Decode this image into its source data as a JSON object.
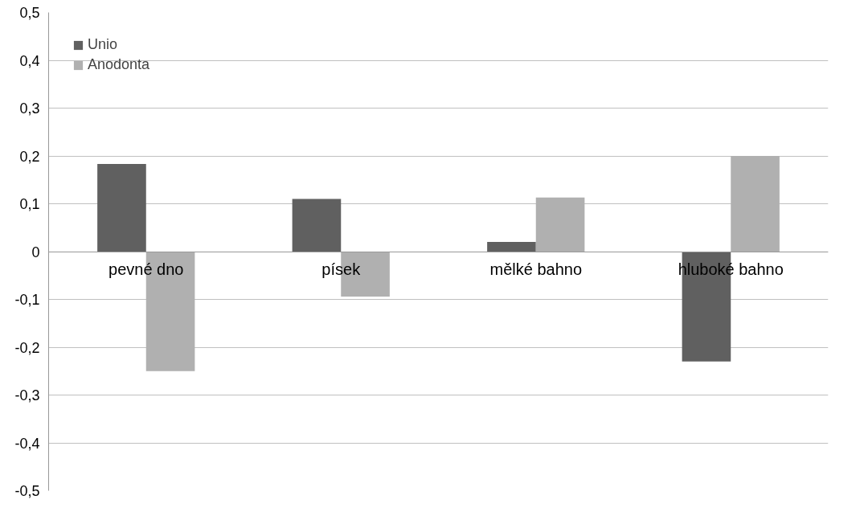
{
  "chart_data": {
    "type": "bar",
    "categories": [
      "pevné dno",
      "písek",
      "mělké bahno",
      "hluboké bahno"
    ],
    "series": [
      {
        "name": "Unio",
        "color": "#606060",
        "values": [
          0.183,
          0.11,
          0.02,
          -0.23
        ]
      },
      {
        "name": "Anodonta",
        "color": "#b0b0b0",
        "values": [
          -0.25,
          -0.094,
          0.113,
          0.2
        ]
      }
    ],
    "ylim": [
      -0.5,
      0.5
    ],
    "yticks": [
      {
        "value": -0.5,
        "label": "-0,5"
      },
      {
        "value": -0.4,
        "label": "-0,4"
      },
      {
        "value": -0.3,
        "label": "-0,3"
      },
      {
        "value": -0.2,
        "label": "-0,2"
      },
      {
        "value": -0.1,
        "label": "-0,1"
      },
      {
        "value": 0,
        "label": "0"
      },
      {
        "value": 0.1,
        "label": "0,1"
      },
      {
        "value": 0.2,
        "label": "0,2"
      },
      {
        "value": 0.3,
        "label": "0,3"
      },
      {
        "value": 0.4,
        "label": "0,4"
      },
      {
        "value": 0.5,
        "label": "0,5"
      }
    ],
    "grid": "y",
    "legend": "top left"
  }
}
